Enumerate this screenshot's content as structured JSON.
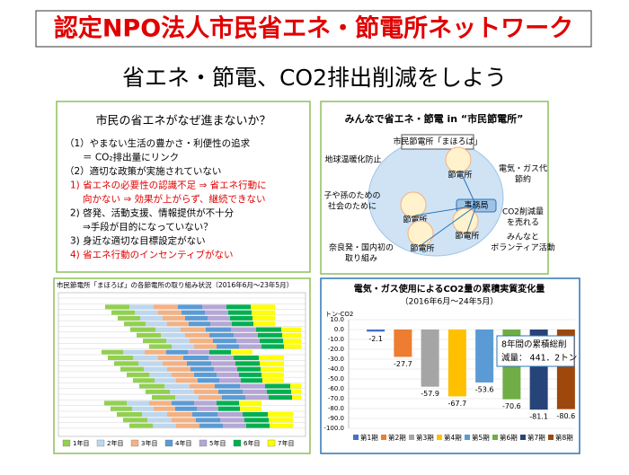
{
  "header": {
    "title": "認定NPO法人市民省エネ・節電所ネットワーク",
    "subtitle": "省エネ・節電、CO2排出削減をしよう"
  },
  "left_panel": {
    "title": "市民の省エネがなぜ進まないか？",
    "lines": [
      {
        "text": "（1）やまない生活の豊かさ・利便性の追求",
        "color": "#000000"
      },
      {
        "text": "＝ CO₂排出量にリンク",
        "color": "#000000"
      },
      {
        "text": "（2）適切な政策が実施されていない",
        "color": "#000000"
      },
      {
        "text": "1) 省エネの必要性の認識不足 ⇒ 省エネ行動に",
        "color": "#e00000"
      },
      {
        "text": "向かない ⇒ 効果が上がらず、継続できない",
        "color": "#e00000"
      },
      {
        "text": "2) 啓発、活動支援、情報提供が不十分",
        "color": "#000000"
      },
      {
        "text": "⇒手段が目的になっていない？",
        "color": "#000000"
      },
      {
        "text": "3) 身近な適切な目標設定がない",
        "color": "#000000"
      },
      {
        "text": "4) 省エネ行動のインセンティブがない",
        "color": "#e00000"
      }
    ]
  },
  "diagram": {
    "title": "みんなで省エネ・節電 in “市民節電所”",
    "center_label": "市民節電所「まほろば」",
    "hub": "事務局",
    "nodes": [
      "節電所",
      "節電所",
      "節電所",
      "節電所"
    ],
    "benefits": [
      [
        "地球温暖化防止"
      ],
      [
        "電気・ガス代",
        "節約"
      ],
      [
        "子や孫のための",
        "社会のために"
      ],
      [
        "CO2削減量",
        "を売れる"
      ],
      [
        "みんなと",
        "ボランティア活動"
      ],
      [
        "奈良発・国内初の",
        "取り組み"
      ]
    ]
  },
  "status_table": {
    "title": "市民節電所「まほろば」の各節電所の取り組み状況（2016年6月～23年5月）",
    "legend": [
      {
        "name": "1年目",
        "color": "#92d050"
      },
      {
        "name": "2年目",
        "color": "#bdd7ee"
      },
      {
        "name": "3年目",
        "color": "#f4b183"
      },
      {
        "name": "4年目",
        "color": "#5b9bd5"
      },
      {
        "name": "5年目",
        "color": "#b4a7d6"
      },
      {
        "name": "6年目",
        "color": "#00b050"
      },
      {
        "name": "7年目",
        "color": "#ffff00"
      }
    ]
  },
  "chart_data": {
    "type": "bar",
    "title": "電気・ガス使用によるCO2量の累積実質変化量",
    "subtitle": "（2016年6月～24年5月）",
    "y_label": "トン-CO2",
    "annotation": [
      "8年間の累積総削",
      "減量：  441．2トン"
    ],
    "categories": [
      null
    ],
    "series": [
      {
        "name": "第1期",
        "color": "#4472c4",
        "values": [
          -2.1
        ]
      },
      {
        "name": "第2期",
        "color": "#ed7d31",
        "values": [
          -27.7
        ]
      },
      {
        "name": "第3期",
        "color": "#a5a5a5",
        "values": [
          -57.9
        ]
      },
      {
        "name": "第4期",
        "color": "#ffc000",
        "values": [
          -67.7
        ]
      },
      {
        "name": "第5期",
        "color": "#5b9bd5",
        "values": [
          -53.6
        ]
      },
      {
        "name": "第6期",
        "color": "#70ad47",
        "values": [
          -70.6
        ]
      },
      {
        "name": "第7期",
        "color": "#264478",
        "values": [
          -81.1
        ]
      },
      {
        "name": "第8期",
        "color": "#9e480e",
        "values": [
          -80.6
        ]
      }
    ],
    "ylim": [
      10,
      -100
    ],
    "yticks": [
      {
        "value": 10,
        "label": "10.0"
      },
      {
        "value": 0,
        "label": "0.0"
      },
      {
        "value": -10,
        "label": "-10.0"
      },
      {
        "value": -20,
        "label": "-20.0"
      },
      {
        "value": -30,
        "label": "-30.0"
      },
      {
        "value": -40,
        "label": "-40.0"
      },
      {
        "value": -50,
        "label": "-50.0"
      },
      {
        "value": -60,
        "label": "-60.0"
      },
      {
        "value": -70,
        "label": "-70.0"
      },
      {
        "value": -80,
        "label": "-80.0"
      },
      {
        "value": -90,
        "label": "-90.0"
      },
      {
        "value": -100,
        "label": "-100.0"
      }
    ],
    "grid": true,
    "legend": "bottom"
  }
}
